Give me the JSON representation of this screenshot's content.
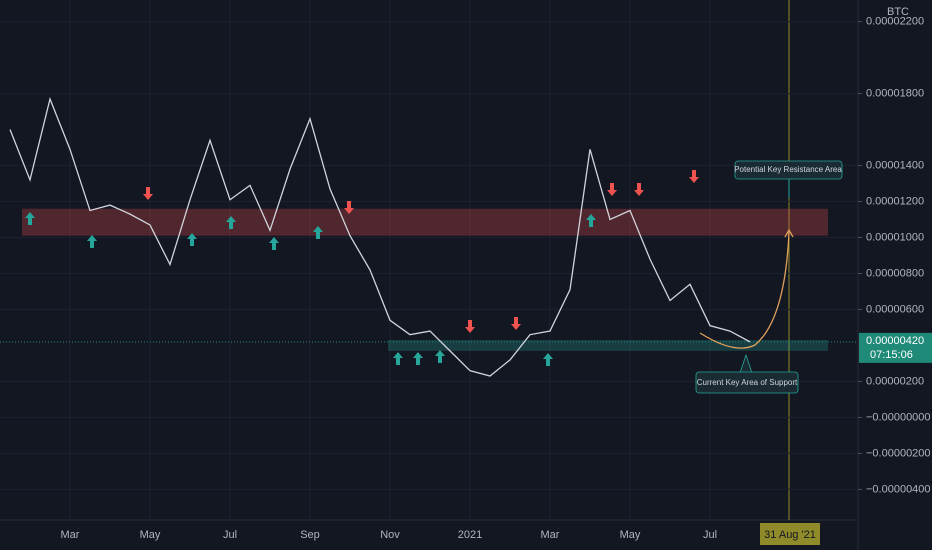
{
  "chart_data": {
    "type": "line",
    "unit_label": "BTC",
    "categories": [
      null,
      null,
      null,
      "Mar",
      null,
      null,
      null,
      "May",
      null,
      null,
      null,
      "Jul",
      null,
      null,
      null,
      "Sep",
      null,
      null,
      null,
      "Nov",
      null,
      null,
      null,
      "2021",
      null,
      null,
      null,
      "Mar",
      null,
      null,
      null,
      "May",
      null,
      null,
      null,
      "Jul",
      null,
      null,
      null,
      "31 Aug '21"
    ],
    "series": [
      {
        "color": "#d1d4dc",
        "values": [
          1.6e-05,
          1.32e-05,
          1.77e-05,
          1.49e-05,
          1.15e-05,
          1.18e-05,
          1.13e-05,
          1.07e-05,
          8.5e-06,
          1.21e-05,
          1.54e-05,
          1.21e-05,
          1.29e-05,
          1.04e-05,
          1.38e-05,
          1.66e-05,
          1.27e-05,
          1.01e-05,
          8.2e-06,
          5.4e-06,
          4.6e-06,
          4.8e-06,
          3.7e-06,
          2.6e-06,
          2.3e-06,
          3.2e-06,
          4.6e-06,
          4.8e-06,
          7.1e-06,
          1.49e-05,
          1.1e-05,
          1.15e-05,
          8.8e-06,
          6.5e-06,
          7.4e-06,
          5.1e-06,
          4.8e-06,
          4.2e-06,
          null,
          null
        ]
      }
    ],
    "ylim": [
      -5.7e-06,
      2.32e-05
    ],
    "yticks": [
      {
        "value": 2.2e-05,
        "label": "0.00002200"
      },
      {
        "value": 1.8e-05,
        "label": "0.00001800"
      },
      {
        "value": 1.4e-05,
        "label": "0.00001400"
      },
      {
        "value": 1.2e-05,
        "label": "0.00001200"
      },
      {
        "value": 1e-05,
        "label": "0.00001000"
      },
      {
        "value": 8e-06,
        "label": "0.00000800"
      },
      {
        "value": 6e-06,
        "label": "0.00000600"
      },
      {
        "value": 2e-06,
        "label": "0.00000200"
      },
      {
        "value": 0,
        "label": "−0.00000000"
      },
      {
        "value": -2e-06,
        "label": "−0.00000200"
      },
      {
        "value": -4e-06,
        "label": "−0.00000400"
      }
    ],
    "current_price": {
      "value": 4.2e-06,
      "label": "0.00000420",
      "countdown": "07:15:06",
      "color": "#1f8a78"
    },
    "resistance_zone": {
      "range": [
        1.01e-05,
        1.16e-05
      ],
      "color": "rgba(239,83,80,0.28)",
      "annotation": "Potential Key Resistance Area"
    },
    "support_zone": {
      "range": [
        3.7e-06,
        4.3e-06
      ],
      "color": "rgba(38,166,154,0.28)",
      "annotation": "Current Key Area of Support"
    }
  }
}
